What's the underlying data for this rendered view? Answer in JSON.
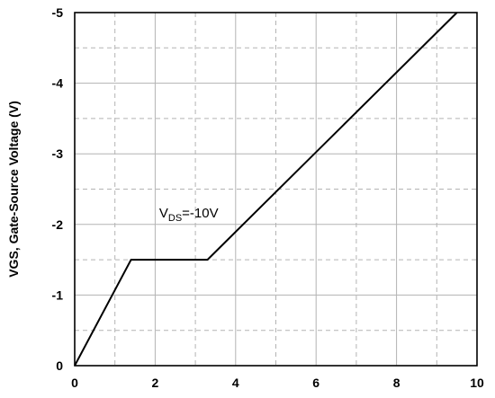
{
  "chart_data": {
    "type": "line",
    "title": "",
    "xlabel": "",
    "ylabel": "VGS, Gate-Source Voltage (V)",
    "xlim": [
      0,
      10
    ],
    "ylim": [
      0,
      -5
    ],
    "x_ticks": [
      0,
      2,
      4,
      6,
      8,
      10
    ],
    "y_ticks": [
      0,
      -1,
      -2,
      -3,
      -4,
      -5
    ],
    "x_tick_labels": [
      "0",
      "2",
      "4",
      "6",
      "8",
      "10"
    ],
    "y_tick_labels": [
      "0",
      "-1",
      "-2",
      "-3",
      "-4",
      "-5"
    ],
    "grid": {
      "major": true,
      "minor_dashed": true,
      "x_minor_step": 1,
      "y_minor_step": 0.5
    },
    "series": [
      {
        "points": [
          {
            "x": 0,
            "y": 0
          },
          {
            "x": 1.4,
            "y": -1.5
          },
          {
            "x": 3.3,
            "y": -1.5
          },
          {
            "x": 9.5,
            "y": -5.0
          }
        ]
      }
    ],
    "annotation": {
      "base": "V",
      "sub": "DS",
      "rest": "=-10V",
      "x": 2.1,
      "y": -2.1
    },
    "colors": {
      "line": "#000000",
      "grid": "#b3b3b3",
      "axis": "#000000"
    }
  }
}
